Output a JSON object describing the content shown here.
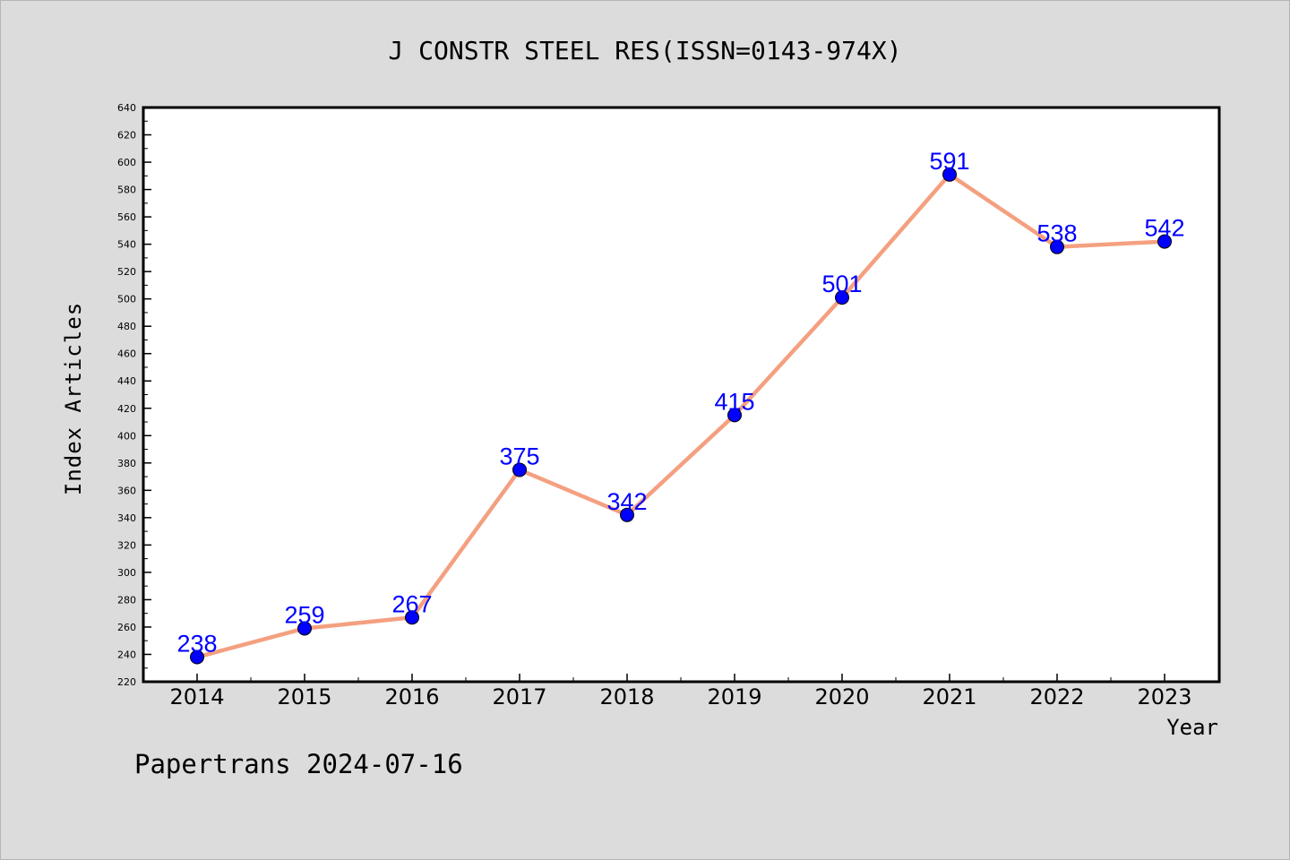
{
  "footer": "Papertrans 2024-07-16",
  "chart_data": {
    "type": "line",
    "title": "J CONSTR STEEL RES(ISSN=0143-974X)",
    "xlabel": "Year",
    "ylabel": "Index Articles",
    "categories": [
      "2014",
      "2015",
      "2016",
      "2017",
      "2018",
      "2019",
      "2020",
      "2021",
      "2022",
      "2023"
    ],
    "values": [
      238,
      259,
      267,
      375,
      342,
      415,
      501,
      591,
      538,
      542
    ],
    "ylim": [
      220,
      640
    ],
    "yticks": [
      220,
      240,
      260,
      280,
      300,
      320,
      340,
      360,
      380,
      400,
      420,
      440,
      460,
      480,
      500,
      520,
      540,
      560,
      580,
      600,
      620,
      640
    ],
    "grid": false,
    "colors": {
      "line": "#f4a080",
      "marker": "#0000ff",
      "label": "#0000ff",
      "background": "#dcdcdc",
      "plot": "#ffffff"
    }
  }
}
